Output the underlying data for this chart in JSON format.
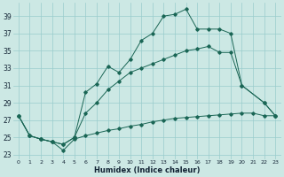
{
  "xlabel": "Humidex (Indice chaleur)",
  "bg_color": "#cce8e4",
  "grid_color": "#99cccc",
  "line_color": "#1a6655",
  "xlim": [
    -0.5,
    23.5
  ],
  "ylim": [
    22.5,
    40.5
  ],
  "yticks": [
    23,
    25,
    27,
    29,
    31,
    33,
    35,
    37,
    39
  ],
  "xticks": [
    0,
    1,
    2,
    3,
    4,
    5,
    6,
    7,
    8,
    9,
    10,
    11,
    12,
    13,
    14,
    15,
    16,
    17,
    18,
    19,
    20,
    21,
    22,
    23
  ],
  "line1_x": [
    0,
    1,
    2,
    3,
    4,
    5,
    6,
    7,
    8,
    9,
    10,
    11,
    12,
    13,
    14,
    15,
    16,
    17,
    18,
    19,
    20,
    22,
    23
  ],
  "line1_y": [
    27.5,
    25.2,
    24.8,
    24.5,
    24.2,
    25.0,
    30.2,
    31.2,
    33.2,
    32.5,
    34.0,
    36.2,
    37.0,
    39.0,
    39.2,
    39.8,
    37.5,
    37.5,
    37.5,
    37.0,
    31.0,
    29.0,
    27.5
  ],
  "line2_x": [
    0,
    1,
    2,
    3,
    4,
    5,
    6,
    7,
    8,
    9,
    10,
    11,
    12,
    13,
    14,
    15,
    16,
    17,
    18,
    19,
    20,
    22,
    23
  ],
  "line2_y": [
    27.5,
    25.2,
    24.8,
    24.5,
    24.2,
    25.0,
    27.8,
    29.0,
    30.5,
    31.5,
    32.5,
    33.0,
    33.5,
    34.0,
    34.5,
    35.0,
    35.2,
    35.5,
    34.8,
    34.8,
    31.0,
    29.0,
    27.5
  ],
  "line3_x": [
    0,
    1,
    2,
    3,
    4,
    5,
    6,
    7,
    8,
    9,
    10,
    11,
    12,
    13,
    14,
    15,
    16,
    17,
    18,
    19,
    20,
    21,
    22,
    23
  ],
  "line3_y": [
    27.5,
    25.2,
    24.8,
    24.5,
    23.5,
    24.8,
    25.2,
    25.5,
    25.8,
    26.0,
    26.3,
    26.5,
    26.8,
    27.0,
    27.2,
    27.3,
    27.4,
    27.5,
    27.6,
    27.7,
    27.8,
    27.8,
    27.5,
    27.5
  ]
}
